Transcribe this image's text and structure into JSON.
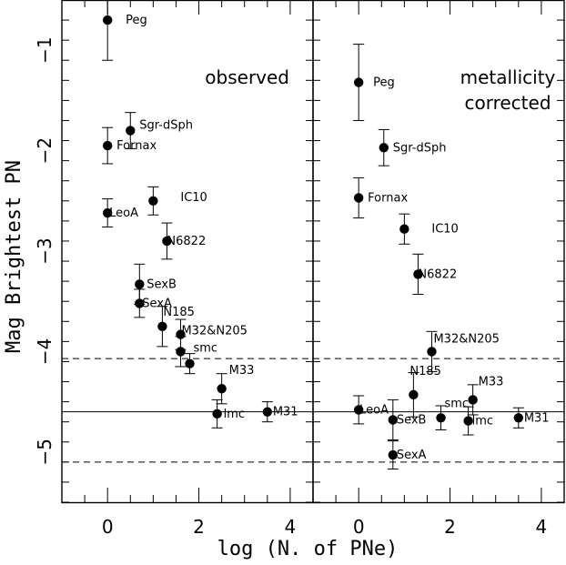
{
  "chart_data": [
    {
      "type": "scatter",
      "panel": "left",
      "annotation": [
        "observed"
      ],
      "xlim": [
        -1,
        4.5
      ],
      "ylim": [
        -5.5,
        -0.5
      ],
      "y_inverted": true,
      "xticks": [
        "0",
        "2",
        "4"
      ],
      "yticks": [
        "−1",
        "−2",
        "−3",
        "−4",
        "−5"
      ],
      "reference_lines": {
        "solid": -4.6,
        "dashed": [
          -4.07,
          -5.1
        ]
      },
      "points": [
        {
          "label": "Peg",
          "x": 0.0,
          "y": -0.7,
          "err": 0.4
        },
        {
          "label": "Sgr-dSph",
          "x": 0.5,
          "y": -1.8,
          "err": 0.18
        },
        {
          "label": "Fornax",
          "x": 0.0,
          "y": -1.95,
          "err": 0.18
        },
        {
          "label": "IC10",
          "x": 1.0,
          "y": -2.5,
          "err": 0.14
        },
        {
          "label": "LeoA",
          "x": 0.0,
          "y": -2.62,
          "err": 0.14
        },
        {
          "label": "N6822",
          "x": 1.3,
          "y": -2.9,
          "err": 0.18
        },
        {
          "label": "SexB",
          "x": 0.7,
          "y": -3.33,
          "err": 0.2
        },
        {
          "label": "SexA",
          "x": 0.7,
          "y": -3.52,
          "err": 0.14
        },
        {
          "label": "N185",
          "x": 1.2,
          "y": -3.75,
          "err": 0.2
        },
        {
          "label": "M32&N205",
          "x": 1.6,
          "y": -3.83,
          "err": 0.15
        },
        {
          "label": "smc",
          "x": 1.6,
          "y": -4.0,
          "err": 0.15
        },
        {
          "label": "",
          "x": 1.8,
          "y": -4.12,
          "err": 0.1
        },
        {
          "label": "M33",
          "x": 2.5,
          "y": -4.37,
          "err": 0.15
        },
        {
          "label": "lmc",
          "x": 2.4,
          "y": -4.62,
          "err": 0.14
        },
        {
          "label": "M31",
          "x": 3.5,
          "y": -4.6,
          "err": 0.1
        }
      ]
    },
    {
      "type": "scatter",
      "panel": "right",
      "annotation": [
        "metallicity",
        "corrected"
      ],
      "xlim": [
        -1,
        4.5
      ],
      "ylim": [
        -5.5,
        -0.5
      ],
      "y_inverted": true,
      "xticks": [
        "0",
        "2",
        "4"
      ],
      "reference_lines": {
        "solid": -4.6,
        "dashed": [
          -4.07,
          -5.1
        ]
      },
      "points": [
        {
          "label": "Peg",
          "x": 0.0,
          "y": -1.32,
          "err": 0.38
        },
        {
          "label": "Sgr-dSph",
          "x": 0.55,
          "y": -1.97,
          "err": 0.18
        },
        {
          "label": "Fornax",
          "x": 0.0,
          "y": -2.47,
          "err": 0.2
        },
        {
          "label": "IC10",
          "x": 1.0,
          "y": -2.78,
          "err": 0.15
        },
        {
          "label": "N6822",
          "x": 1.3,
          "y": -3.23,
          "err": 0.2
        },
        {
          "label": "M32&N205",
          "x": 1.6,
          "y": -4.0,
          "err": 0.2
        },
        {
          "label": "N185",
          "x": 1.2,
          "y": -4.43,
          "err": 0.22
        },
        {
          "label": "M33",
          "x": 2.5,
          "y": -4.48,
          "err": 0.15
        },
        {
          "label": "LeoA",
          "x": 0.0,
          "y": -4.58,
          "err": 0.14
        },
        {
          "label": "smc",
          "x": 1.8,
          "y": -4.66,
          "err": 0.12
        },
        {
          "label": "M31",
          "x": 3.5,
          "y": -4.66,
          "err": 0.1
        },
        {
          "label": "SexB",
          "x": 0.75,
          "y": -4.68,
          "err": 0.2
        },
        {
          "label": "lmc",
          "x": 2.4,
          "y": -4.69,
          "err": 0.14
        },
        {
          "label": "SexA",
          "x": 0.75,
          "y": -5.03,
          "err": 0.14
        }
      ]
    }
  ],
  "xlabel": "log (N. of PNe)",
  "ylabel": "Mag Brightest PN"
}
